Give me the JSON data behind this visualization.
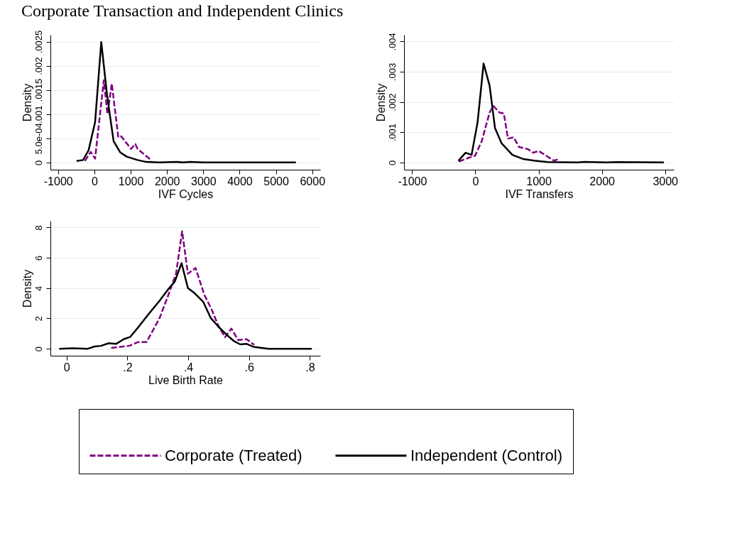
{
  "chart_data": [
    {
      "type": "line",
      "title": "Corporate Transaction and Independent Clinics",
      "xlabel": "IVF Cycles",
      "ylabel": "Density",
      "xlim": [
        -1210,
        6220
      ],
      "ylim": [
        -0.00015,
        0.00264
      ],
      "xticks": [
        -1000,
        0,
        1000,
        2000,
        3000,
        4000,
        5000,
        6000
      ],
      "yticks": [
        0,
        {
          "value": 0.0005,
          "label": "5.0e-04"
        },
        {
          "value": 0.001,
          "label": ".001"
        },
        {
          "value": 0.0015,
          "label": ".0015"
        },
        {
          "value": 0.002,
          "label": ".002"
        },
        {
          "value": 0.0025,
          "label": ".0025"
        }
      ],
      "grid": "y",
      "marker": "none",
      "series": [
        {
          "color": "#800080",
          "line_style": "dashed",
          "x": [
            -260,
            -100,
            20,
            260,
            360,
            480,
            660,
            740,
            1010,
            1130,
            1190,
            1580
          ],
          "values": [
            3e-05,
            0.00022,
            8e-05,
            0.0017,
            0.001,
            0.00163,
            0.00052,
            0.00054,
            0.00028,
            0.00038,
            0.00028,
            4e-05
          ]
        },
        {
          "color": "#000000",
          "line_style": "solid",
          "x": [
            -490,
            -310,
            -160,
            20,
            190,
            350,
            530,
            710,
            890,
            1190,
            1430,
            1790,
            2270,
            2450,
            2630,
            3000,
            3600,
            5550
          ],
          "values": [
            3e-05,
            5e-05,
            0.00025,
            0.00083,
            0.00249,
            0.00139,
            0.00044,
            0.00021,
            0.00012,
            5e-05,
            1e-05,
            0,
            1e-05,
            0,
            1e-05,
            0,
            0,
            0
          ]
        }
      ]
    },
    {
      "type": "line",
      "xlabel": "IVF Transfers",
      "ylabel": "Density",
      "xlim": [
        -1128,
        3138
      ],
      "ylim": [
        -0.00024,
        0.00422
      ],
      "xticks": [
        -1000,
        0,
        1000,
        2000,
        3000
      ],
      "yticks": [
        0,
        {
          "value": 0.001,
          "label": ".001"
        },
        {
          "value": 0.002,
          "label": ".002"
        },
        {
          "value": 0.003,
          "label": ".003"
        },
        {
          "value": 0.004,
          "label": ".004"
        }
      ],
      "grid": "y",
      "marker": "none",
      "series": [
        {
          "color": "#800080",
          "line_style": "dashed",
          "x": [
            -260,
            -100,
            -5,
            100,
            225,
            285,
            380,
            450,
            515,
            605,
            690,
            830,
            915,
            1000,
            1100,
            1240,
            1320
          ],
          "values": [
            3e-05,
            0.00016,
            0.00022,
            0.0007,
            0.00165,
            0.00187,
            0.00165,
            0.00162,
            0.00079,
            0.00083,
            0.00051,
            0.00044,
            0.00032,
            0.00038,
            0.00025,
            6e-05,
            0.00011
          ]
        },
        {
          "color": "#000000",
          "line_style": "solid",
          "x": [
            -270,
            -155,
            -60,
            35,
            130,
            225,
            310,
            415,
            585,
            760,
            930,
            1140,
            1620,
            1720,
            2070,
            2240,
            2980
          ],
          "values": [
            5e-05,
            0.00032,
            0.00025,
            0.00133,
            0.00327,
            0.00254,
            0.00114,
            0.00063,
            0.00025,
            0.00011,
            6e-05,
            1e-05,
            0,
            2e-05,
            0,
            1e-05,
            0
          ]
        }
      ]
    },
    {
      "type": "line",
      "xlabel": "Live Birth Rate",
      "ylabel": "Density",
      "xlim": [
        -0.053,
        0.834
      ],
      "ylim": [
        -0.46,
        8.44
      ],
      "xticks": [
        0,
        {
          "value": 0.2,
          "label": ".2"
        },
        {
          "value": 0.4,
          "label": ".4"
        },
        {
          "value": 0.6,
          "label": ".6"
        },
        {
          "value": 0.8,
          "label": ".8"
        }
      ],
      "yticks": [
        0,
        2,
        4,
        6,
        8
      ],
      "grid": "y",
      "marker": "none",
      "legend": "bottom",
      "series": [
        {
          "name": "Corporate (Treated)",
          "color": "#800080",
          "line_style": "dashed",
          "x": [
            0.147,
            0.206,
            0.235,
            0.263,
            0.306,
            0.335,
            0.36,
            0.38,
            0.399,
            0.424,
            0.453,
            0.478,
            0.499,
            0.521,
            0.542,
            0.564,
            0.592,
            0.617
          ],
          "values": [
            0.06,
            0.19,
            0.44,
            0.44,
            2.03,
            3.56,
            4.95,
            7.75,
            4.95,
            5.33,
            3.56,
            2.54,
            1.52,
            0.76,
            1.33,
            0.57,
            0.63,
            0.25
          ]
        },
        {
          "name": "Independent (Control)",
          "color": "#000000",
          "line_style": "solid",
          "x": [
            -0.024,
            0.02,
            0.07,
            0.092,
            0.113,
            0.138,
            0.163,
            0.188,
            0.21,
            0.235,
            0.27,
            0.306,
            0.335,
            0.356,
            0.378,
            0.399,
            0.42,
            0.449,
            0.474,
            0.499,
            0.528,
            0.55,
            0.571,
            0.592,
            0.614,
            0.664,
            0.736,
            0.806
          ],
          "values": [
            0,
            0.03,
            0,
            0.15,
            0.19,
            0.36,
            0.32,
            0.63,
            0.79,
            1.4,
            2.29,
            3.17,
            3.94,
            4.44,
            5.65,
            4.0,
            3.68,
            3.11,
            2.03,
            1.46,
            0.89,
            0.51,
            0.29,
            0.32,
            0.13,
            0,
            0,
            0
          ]
        }
      ]
    }
  ]
}
